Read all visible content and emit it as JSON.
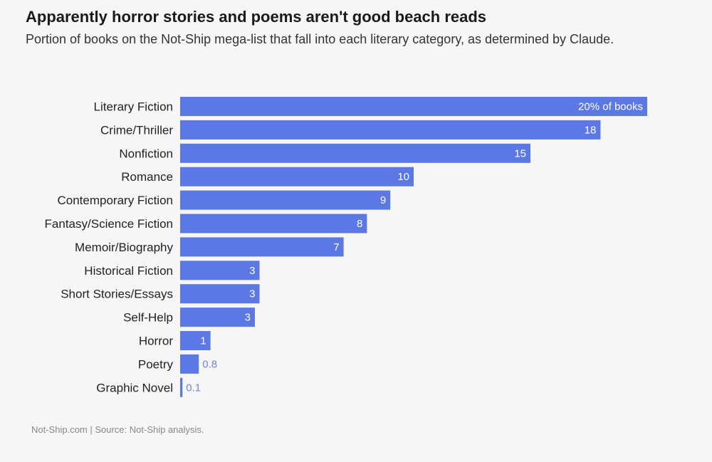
{
  "chart_data": {
    "type": "bar",
    "orientation": "horizontal",
    "title": "Apparently horror stories and poems aren't good beach reads",
    "subtitle": "Portion of books on the Not-Ship mega-list that fall into each literary category, as determined by Claude.",
    "categories": [
      "Literary Fiction",
      "Crime/Thriller",
      "Nonfiction",
      "Romance",
      "Contemporary Fiction",
      "Fantasy/Science Fiction",
      "Memoir/Biography",
      "Historical Fiction",
      "Short Stories/Essays",
      "Self-Help",
      "Horror",
      "Poetry",
      "Graphic Novel"
    ],
    "values": [
      20,
      18,
      15,
      10,
      9,
      8,
      7,
      3.4,
      3.4,
      3.2,
      1.3,
      0.8,
      0.1
    ],
    "labels": [
      "20% of books",
      "18",
      "15",
      "10",
      "9",
      "8",
      "7",
      "3",
      "3",
      "3",
      "1",
      "0.8",
      "0.1"
    ],
    "xlim": [
      0,
      20
    ],
    "bar_color": "#5b78e5",
    "label_color_inside": "#ffffff",
    "label_color_outside": "#6f86e0",
    "grid": false,
    "legend": "none"
  },
  "footer": "Not-Ship.com | Source: Not-Ship analysis."
}
